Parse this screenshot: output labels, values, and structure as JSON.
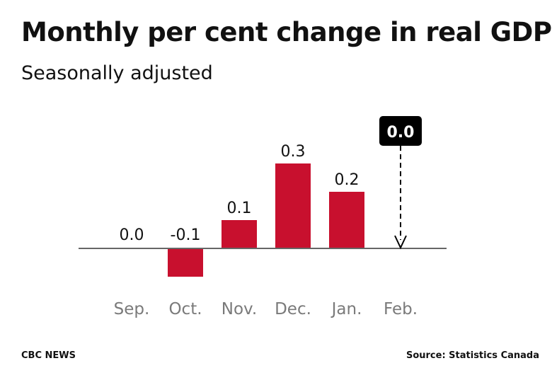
{
  "header": {
    "title": "Monthly per cent change in real GDP",
    "subtitle": "Seasonally adjusted"
  },
  "footer": {
    "brand": "CBC NEWS",
    "source": "Source: Statistics Canada"
  },
  "chart_data": {
    "type": "bar",
    "title": "Monthly per cent change in real GDP",
    "subtitle": "Seasonally adjusted",
    "categories": [
      "Sep.",
      "Oct.",
      "Nov.",
      "Dec.",
      "Jan.",
      "Feb."
    ],
    "values": [
      0.0,
      -0.1,
      0.1,
      0.3,
      0.2,
      null
    ],
    "value_labels": [
      "0.0",
      "-0.1",
      "0.1",
      "0.3",
      "0.2",
      ""
    ],
    "highlight": {
      "category": "Feb.",
      "label": "0.0",
      "style": "boxed callout with dashed arrow to baseline"
    },
    "ylim": [
      -0.1,
      0.3
    ],
    "grid": false,
    "colors": {
      "bar": "#c8102e",
      "baseline": "#666666",
      "category_label": "#7a7a7a",
      "value_label": "#111111",
      "callout_bg": "#000000",
      "callout_text": "#ffffff"
    }
  }
}
